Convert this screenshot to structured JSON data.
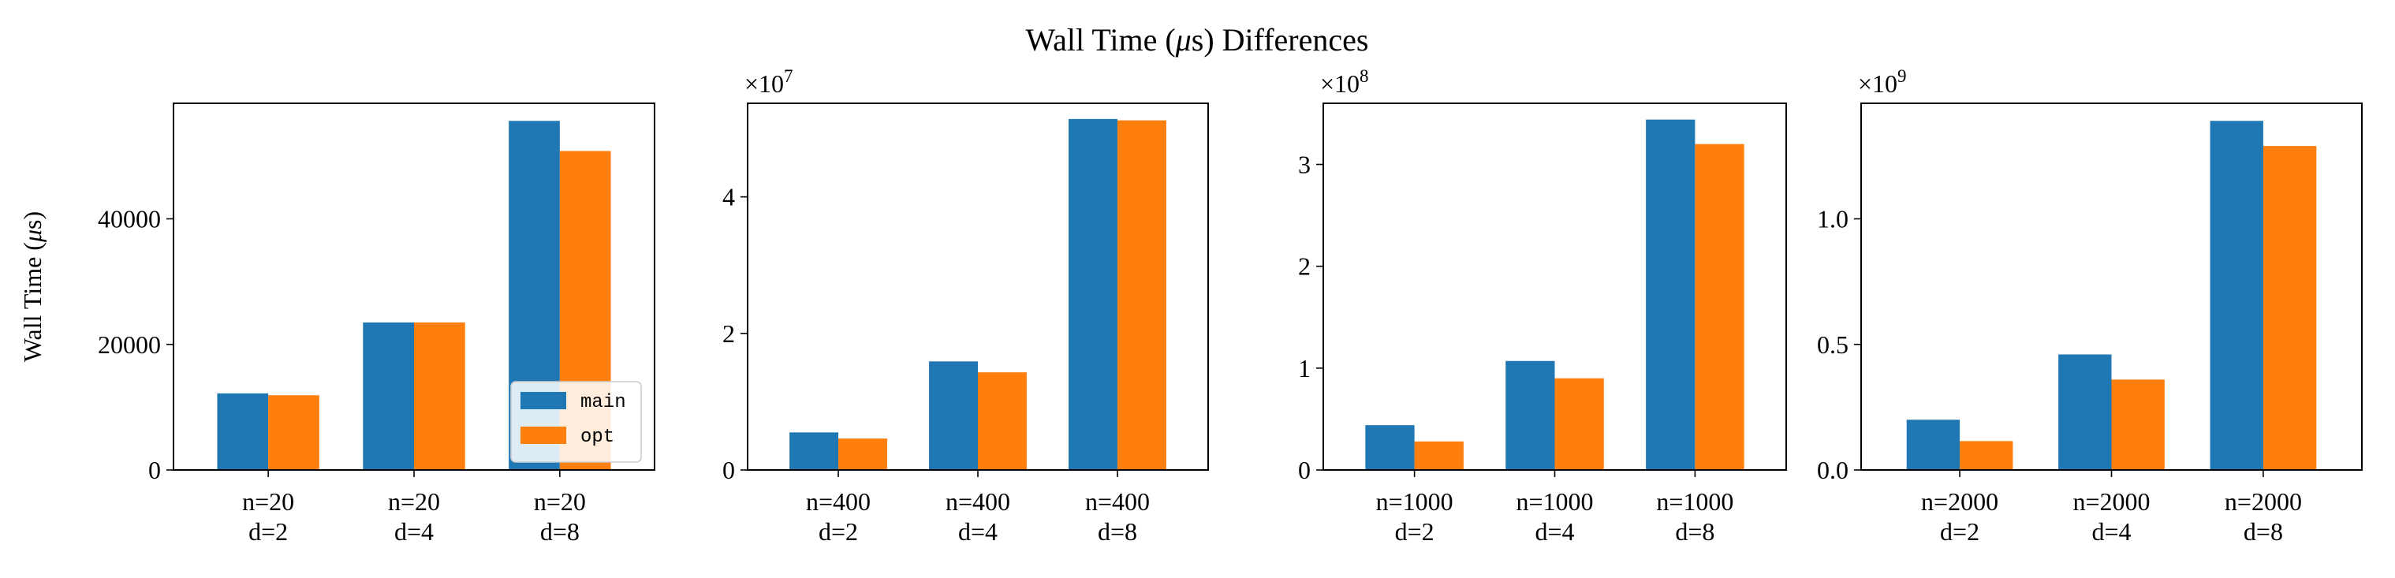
{
  "figure": {
    "title_prefix": "Wall Time (",
    "title_mu": "μ",
    "title_suffix": "s) Differences"
  },
  "legend": {
    "items": [
      {
        "label": "main",
        "color": "#1f77b4"
      },
      {
        "label": "opt",
        "color": "#ff7f0e"
      }
    ],
    "placement": "lower-right of first panel"
  },
  "chart_data": [
    {
      "type": "bar",
      "title": "",
      "ylabel": "Wall Time (μs)",
      "ylabel_prefix": "Wall Time (",
      "ylabel_mu": "μ",
      "ylabel_suffix": "s)",
      "offset_base": "",
      "offset_exp": "",
      "ylim": [
        0,
        58400
      ],
      "yticks": [
        0,
        20000,
        40000
      ],
      "ytick_labels": [
        "0",
        "20000",
        "40000"
      ],
      "categories": [
        "n=20\nd=2",
        "n=20\nd=4",
        "n=20\nd=8"
      ],
      "category_lines": [
        [
          "n=20",
          "d=2"
        ],
        [
          "n=20",
          "d=4"
        ],
        [
          "n=20",
          "d=8"
        ]
      ],
      "series": [
        {
          "name": "main",
          "values": [
            12200,
            23500,
            55600
          ]
        },
        {
          "name": "opt",
          "values": [
            11900,
            23500,
            50800
          ]
        }
      ]
    },
    {
      "type": "bar",
      "title": "",
      "ylabel": "",
      "offset_base": "×10",
      "offset_exp": "7",
      "ylim": [
        0,
        53700000
      ],
      "yticks": [
        0,
        20000000,
        40000000
      ],
      "ytick_labels": [
        "0",
        "2",
        "4"
      ],
      "categories": [
        "n=400\nd=2",
        "n=400\nd=4",
        "n=400\nd=8"
      ],
      "category_lines": [
        [
          "n=400",
          "d=2"
        ],
        [
          "n=400",
          "d=4"
        ],
        [
          "n=400",
          "d=8"
        ]
      ],
      "series": [
        {
          "name": "main",
          "values": [
            5500000,
            15900000,
            51400000
          ]
        },
        {
          "name": "opt",
          "values": [
            4600000,
            14300000,
            51200000
          ]
        }
      ]
    },
    {
      "type": "bar",
      "title": "",
      "ylabel": "",
      "offset_base": "×10",
      "offset_exp": "8",
      "ylim": [
        0,
        360000000
      ],
      "yticks": [
        0,
        100000000,
        200000000,
        300000000
      ],
      "ytick_labels": [
        "0",
        "1",
        "2",
        "3"
      ],
      "categories": [
        "n=1000\nd=2",
        "n=1000\nd=4",
        "n=1000\nd=8"
      ],
      "category_lines": [
        [
          "n=1000",
          "d=2"
        ],
        [
          "n=1000",
          "d=4"
        ],
        [
          "n=1000",
          "d=8"
        ]
      ],
      "series": [
        {
          "name": "main",
          "values": [
            44000000,
            107000000,
            344000000
          ]
        },
        {
          "name": "opt",
          "values": [
            28000000,
            90000000,
            320000000
          ]
        }
      ]
    },
    {
      "type": "bar",
      "title": "",
      "ylabel": "",
      "offset_base": "×10",
      "offset_exp": "9",
      "ylim": [
        0,
        1460000000
      ],
      "yticks": [
        0,
        500000000,
        1000000000
      ],
      "ytick_labels": [
        "0.0",
        "0.5",
        "1.0"
      ],
      "categories": [
        "n=2000\nd=2",
        "n=2000\nd=4",
        "n=2000\nd=8"
      ],
      "category_lines": [
        [
          "n=2000",
          "d=2"
        ],
        [
          "n=2000",
          "d=4"
        ],
        [
          "n=2000",
          "d=8"
        ]
      ],
      "series": [
        {
          "name": "main",
          "values": [
            200000000,
            460000000,
            1390000000
          ]
        },
        {
          "name": "opt",
          "values": [
            115000000,
            360000000,
            1290000000
          ]
        }
      ]
    }
  ]
}
